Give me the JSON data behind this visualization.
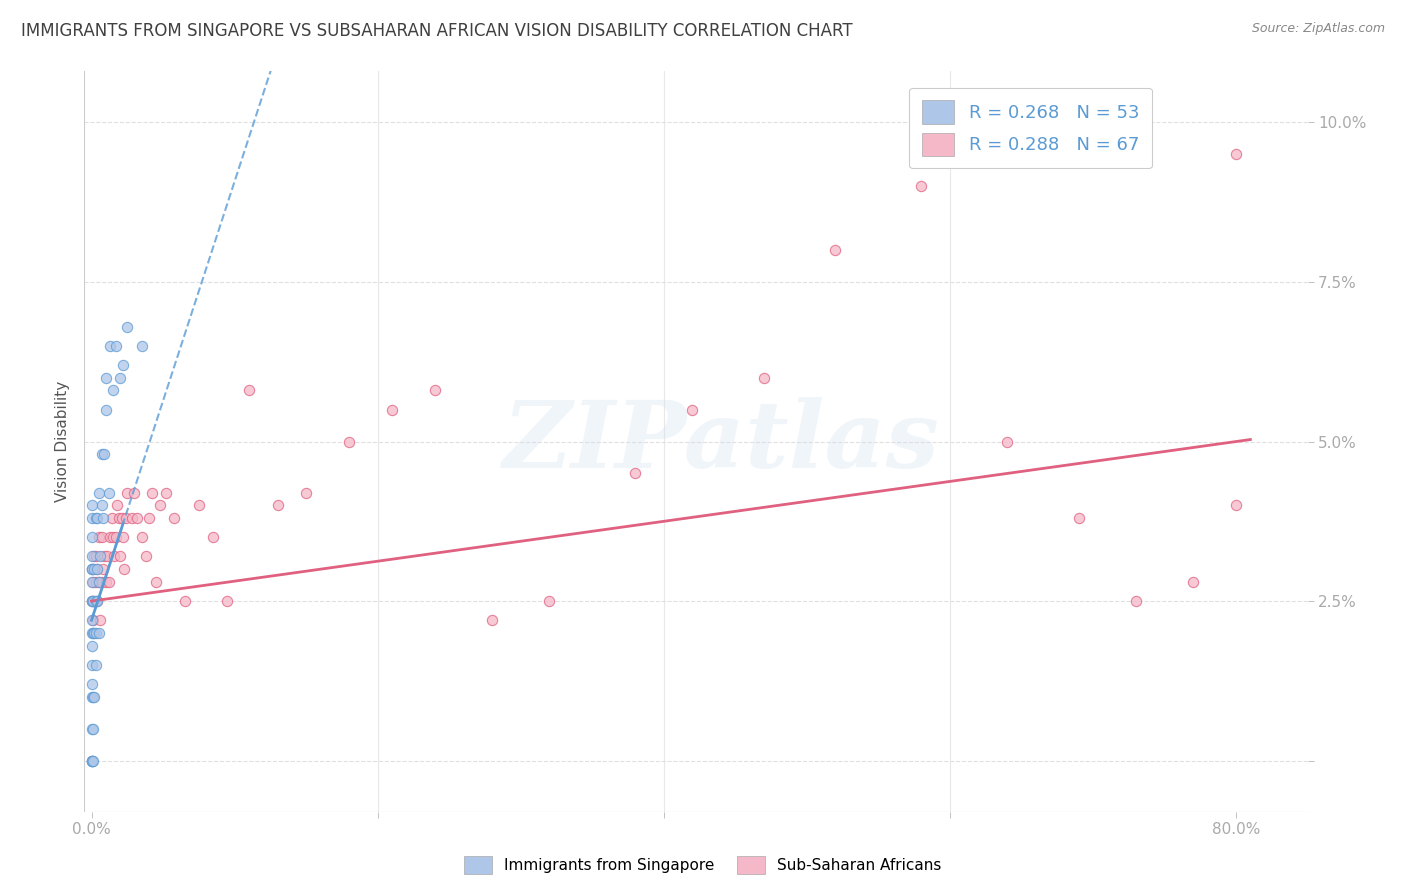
{
  "title": "IMMIGRANTS FROM SINGAPORE VS SUBSAHARAN AFRICAN VISION DISABILITY CORRELATION CHART",
  "source": "Source: ZipAtlas.com",
  "ylabel": "Vision Disability",
  "watermark": "ZIPatlas",
  "legend": {
    "singapore": {
      "R": 0.268,
      "N": 53,
      "color": "#aec6e8",
      "line_color": "#5b9bd5"
    },
    "subsaharan": {
      "R": 0.288,
      "N": 67,
      "color": "#f4b8c8",
      "line_color": "#e06080"
    }
  },
  "yticks": [
    0.0,
    0.025,
    0.05,
    0.075,
    0.1
  ],
  "ytick_labels": [
    "",
    "2.5%",
    "5.0%",
    "7.5%",
    "10.0%"
  ],
  "xlim": [
    -0.005,
    0.85
  ],
  "ylim": [
    -0.008,
    0.108
  ],
  "bg_color": "#ffffff",
  "grid_color": "#e0e0e0",
  "scatter_alpha": 0.75,
  "scatter_size": 55,
  "tick_color": "#5b9bd5",
  "title_color": "#404040",
  "title_fontsize": 12,
  "source_fontsize": 9,
  "singapore_x": [
    0.0,
    0.0,
    0.0,
    0.0,
    0.0,
    0.0,
    0.0,
    0.0,
    0.0,
    0.0,
    0.0,
    0.0,
    0.0,
    0.0,
    0.0,
    0.0,
    0.0,
    0.0,
    0.0,
    0.0,
    0.001,
    0.001,
    0.001,
    0.001,
    0.001,
    0.002,
    0.002,
    0.002,
    0.003,
    0.003,
    0.003,
    0.003,
    0.004,
    0.004,
    0.004,
    0.005,
    0.005,
    0.005,
    0.006,
    0.007,
    0.007,
    0.008,
    0.009,
    0.01,
    0.01,
    0.012,
    0.013,
    0.015,
    0.017,
    0.02,
    0.022,
    0.025,
    0.035
  ],
  "singapore_y": [
    0.0,
    0.0,
    0.0,
    0.0,
    0.005,
    0.01,
    0.012,
    0.015,
    0.018,
    0.02,
    0.022,
    0.025,
    0.025,
    0.028,
    0.03,
    0.03,
    0.032,
    0.035,
    0.038,
    0.04,
    0.0,
    0.005,
    0.01,
    0.02,
    0.025,
    0.01,
    0.02,
    0.03,
    0.015,
    0.02,
    0.025,
    0.038,
    0.025,
    0.03,
    0.038,
    0.02,
    0.028,
    0.042,
    0.032,
    0.04,
    0.048,
    0.038,
    0.048,
    0.055,
    0.06,
    0.042,
    0.065,
    0.058,
    0.065,
    0.06,
    0.062,
    0.068,
    0.065
  ],
  "subsaharan_x": [
    0.0,
    0.0,
    0.001,
    0.001,
    0.002,
    0.002,
    0.003,
    0.003,
    0.004,
    0.004,
    0.005,
    0.005,
    0.006,
    0.007,
    0.007,
    0.008,
    0.009,
    0.01,
    0.011,
    0.012,
    0.013,
    0.014,
    0.015,
    0.016,
    0.017,
    0.018,
    0.019,
    0.02,
    0.021,
    0.022,
    0.023,
    0.024,
    0.025,
    0.028,
    0.03,
    0.032,
    0.035,
    0.038,
    0.04,
    0.042,
    0.045,
    0.048,
    0.052,
    0.058,
    0.065,
    0.075,
    0.085,
    0.095,
    0.11,
    0.13,
    0.15,
    0.18,
    0.21,
    0.24,
    0.28,
    0.32,
    0.38,
    0.42,
    0.47,
    0.52,
    0.58,
    0.64,
    0.69,
    0.73,
    0.77,
    0.8,
    0.8
  ],
  "subsaharan_y": [
    0.025,
    0.03,
    0.022,
    0.028,
    0.025,
    0.032,
    0.028,
    0.032,
    0.025,
    0.03,
    0.028,
    0.035,
    0.022,
    0.028,
    0.035,
    0.03,
    0.032,
    0.028,
    0.032,
    0.028,
    0.035,
    0.038,
    0.035,
    0.032,
    0.035,
    0.04,
    0.038,
    0.032,
    0.038,
    0.035,
    0.03,
    0.038,
    0.042,
    0.038,
    0.042,
    0.038,
    0.035,
    0.032,
    0.038,
    0.042,
    0.028,
    0.04,
    0.042,
    0.038,
    0.025,
    0.04,
    0.035,
    0.025,
    0.058,
    0.04,
    0.042,
    0.05,
    0.055,
    0.058,
    0.022,
    0.025,
    0.045,
    0.055,
    0.06,
    0.08,
    0.09,
    0.05,
    0.038,
    0.025,
    0.028,
    0.04,
    0.095
  ],
  "sg_trend_x0": 0.0,
  "sg_trend_x1": 0.048,
  "sg_trend_y0": 0.022,
  "sg_trend_y1": 0.055,
  "ss_trend_x0": 0.0,
  "ss_trend_x1": 0.8,
  "ss_trend_y0": 0.025,
  "ss_trend_y1": 0.05
}
